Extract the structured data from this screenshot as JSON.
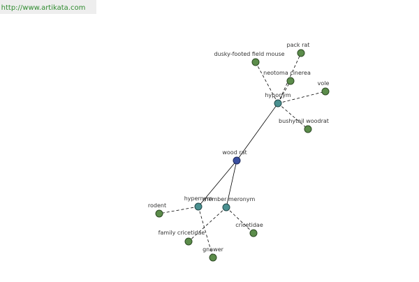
{
  "header": {
    "url": "http://www.artikata.com"
  },
  "nodes": [
    {
      "label": "wood rat"
    },
    {
      "label": "hyponym"
    },
    {
      "label": "hypernym"
    },
    {
      "label": "member meronym"
    },
    {
      "label": "pack rat"
    },
    {
      "label": "dusky-footed field mouse"
    },
    {
      "label": "neotoma cinerea"
    },
    {
      "label": "vole"
    },
    {
      "label": "bushytail woodrat"
    },
    {
      "label": "rodent"
    },
    {
      "label": "family cricetidae"
    },
    {
      "label": "gnawer"
    },
    {
      "label": "cricetidae"
    }
  ]
}
